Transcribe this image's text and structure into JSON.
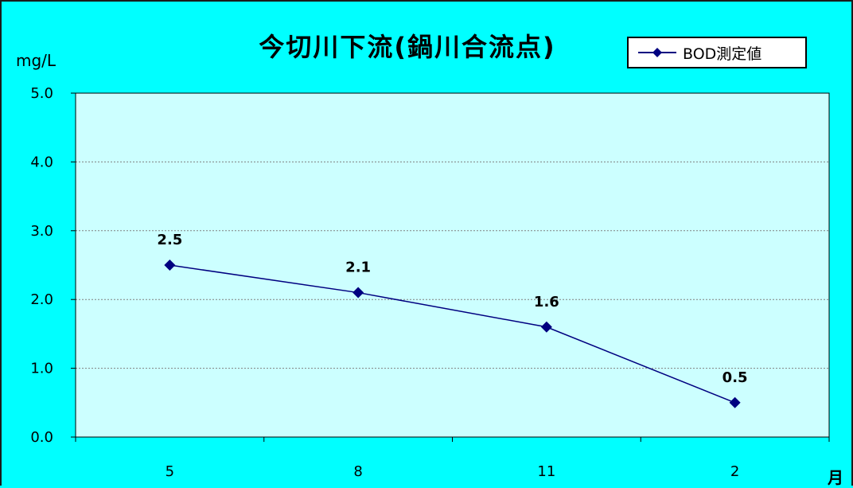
{
  "chart_data": {
    "type": "line",
    "title": "今切川下流(鍋川合流点)",
    "ylabel": "mg/L",
    "xlabel": "月",
    "categories": [
      "5",
      "8",
      "11",
      "2"
    ],
    "series": [
      {
        "name": "BOD測定値",
        "values": [
          2.5,
          2.1,
          1.6,
          0.5
        ],
        "data_labels": [
          "2.5",
          "2.1",
          "1.6",
          "0.5"
        ],
        "color": "#000080",
        "marker": "diamond"
      }
    ],
    "ylim": [
      0,
      5
    ],
    "yticks": [
      0,
      1,
      2,
      3,
      4,
      5
    ],
    "ytick_labels": [
      "0.0",
      "1.0",
      "2.0",
      "3.0",
      "4.0",
      "5.0"
    ],
    "grid": true,
    "legend_position": "top-right",
    "background_color": "#00ffff",
    "plot_background_color": "#ccffff",
    "grid_color": "#808080"
  }
}
